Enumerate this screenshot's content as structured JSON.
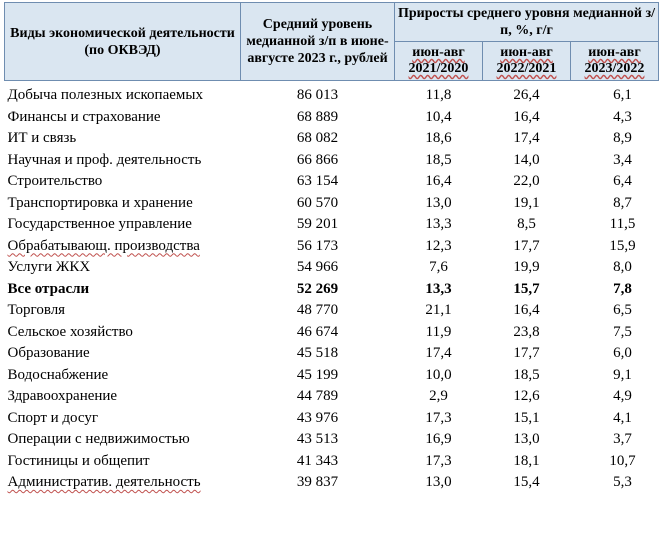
{
  "header": {
    "col_name": "Виды экономической деятельности (по ОКВЭД)",
    "col_wage": "Средний уровень медианной з/п в июне-августе 2023 г., рублей",
    "col_growth": "Приросты среднего уровня медианной з/п, %, г/г",
    "sub_periods": [
      "июн-авг 2021/2020",
      "июн-авг 2022/2021",
      "июн-авг 2023/2022"
    ]
  },
  "rows": [
    {
      "name": "Добыча полезных ископаемых",
      "wage": "86 013",
      "g1": "11,8",
      "g2": "26,4",
      "g3": "6,1"
    },
    {
      "name": "Финансы и страхование",
      "wage": "68 889",
      "g1": "10,4",
      "g2": "16,4",
      "g3": "4,3"
    },
    {
      "name": "ИТ и связь",
      "wage": "68 082",
      "g1": "18,6",
      "g2": "17,4",
      "g3": "8,9"
    },
    {
      "name": "Научная и проф. деятельность",
      "wage": "66 866",
      "g1": "18,5",
      "g2": "14,0",
      "g3": "3,4"
    },
    {
      "name": "Строительство",
      "wage": "63 154",
      "g1": "16,4",
      "g2": "22,0",
      "g3": "6,4"
    },
    {
      "name": "Транспортировка и хранение",
      "wage": "60 570",
      "g1": "13,0",
      "g2": "19,1",
      "g3": "8,7"
    },
    {
      "name": "Государственное управление",
      "wage": "59 201",
      "g1": "13,3",
      "g2": "8,5",
      "g3": "11,5"
    },
    {
      "name": "Обрабатывающ. производства",
      "wage": "56 173",
      "g1": "12,3",
      "g2": "17,7",
      "g3": "15,9"
    },
    {
      "name": "Услуги ЖКХ",
      "wage": "54 966",
      "g1": "7,6",
      "g2": "19,9",
      "g3": "8,0"
    },
    {
      "name": "Все отрасли",
      "wage": "52 269",
      "g1": "13,3",
      "g2": "15,7",
      "g3": "7,8"
    },
    {
      "name": "Торговля",
      "wage": "48 770",
      "g1": "21,1",
      "g2": "16,4",
      "g3": "6,5"
    },
    {
      "name": "Сельское хозяйство",
      "wage": "46 674",
      "g1": "11,9",
      "g2": "23,8",
      "g3": "7,5"
    },
    {
      "name": "Образование",
      "wage": "45 518",
      "g1": "17,4",
      "g2": "17,7",
      "g3": "6,0"
    },
    {
      "name": "Водоснабжение",
      "wage": "45 199",
      "g1": "10,0",
      "g2": "18,5",
      "g3": "9,1"
    },
    {
      "name": "Здравоохранение",
      "wage": "44 789",
      "g1": "2,9",
      "g2": "12,6",
      "g3": "4,9"
    },
    {
      "name": "Спорт и досуг",
      "wage": "43 976",
      "g1": "17,3",
      "g2": "15,1",
      "g3": "4,1"
    },
    {
      "name": "Операции с недвижимостью",
      "wage": "43 513",
      "g1": "16,9",
      "g2": "13,0",
      "g3": "3,7"
    },
    {
      "name": "Гостиницы и общепит",
      "wage": "41 343",
      "g1": "17,3",
      "g2": "18,1",
      "g3": "10,7"
    },
    {
      "name": "Административ. деятельность",
      "wage": "39 837",
      "g1": "13,0",
      "g2": "15,4",
      "g3": "5,3"
    }
  ]
}
